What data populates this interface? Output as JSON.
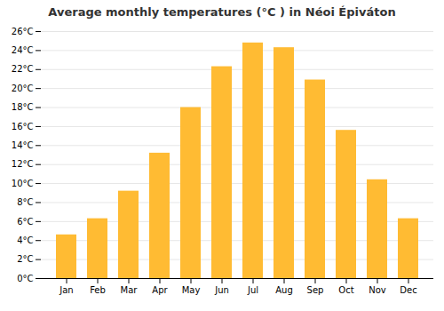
{
  "chart_data": {
    "type": "bar",
    "title": "Average monthly temperatures (°C ) in Néoi Épiváton",
    "categories": [
      "Jan",
      "Feb",
      "Mar",
      "Apr",
      "May",
      "Jun",
      "Jul",
      "Aug",
      "Sep",
      "Oct",
      "Nov",
      "Dec"
    ],
    "values": [
      4.6,
      6.3,
      9.2,
      13.2,
      18.0,
      22.3,
      24.8,
      24.3,
      20.9,
      15.6,
      10.4,
      6.3
    ],
    "color": "#FFBB33",
    "ylim": [
      0,
      26
    ],
    "yticks": [
      {
        "value": 0,
        "label": "0°C"
      },
      {
        "value": 2,
        "label": "2°C"
      },
      {
        "value": 4,
        "label": "4°C"
      },
      {
        "value": 6,
        "label": "6°C"
      },
      {
        "value": 8,
        "label": "8°C"
      },
      {
        "value": 10,
        "label": "10°C"
      },
      {
        "value": 12,
        "label": "12°C"
      },
      {
        "value": 14,
        "label": "14°C"
      },
      {
        "value": 16,
        "label": "16°C"
      },
      {
        "value": 18,
        "label": "18°C"
      },
      {
        "value": 20,
        "label": "20°C"
      },
      {
        "value": 22,
        "label": "22°C"
      },
      {
        "value": 24,
        "label": "24°C"
      },
      {
        "value": 26,
        "label": "26°C"
      }
    ],
    "grid": true
  }
}
